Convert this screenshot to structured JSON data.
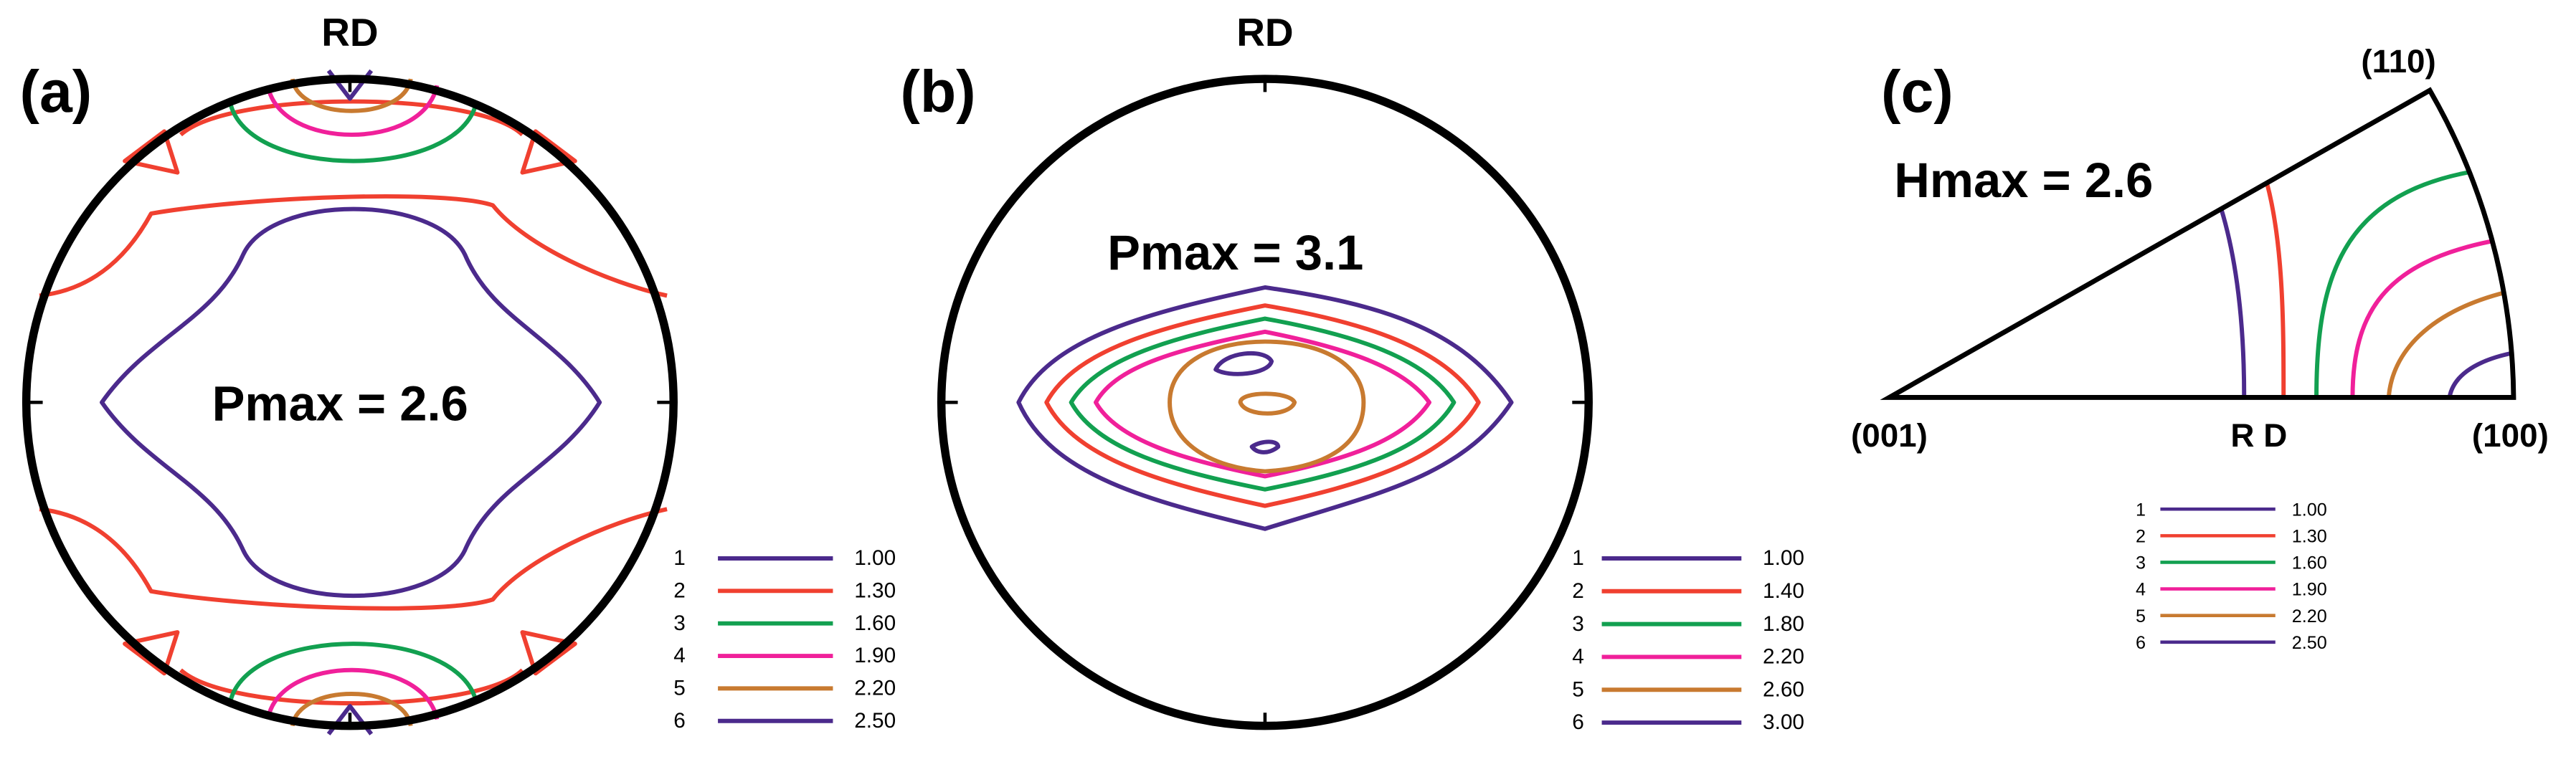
{
  "panels": [
    {
      "label": "(a)",
      "top_label": "RD",
      "annotation": "Pmax = 2.6",
      "legend": [
        {
          "level": "1",
          "value": "1.00",
          "color": "#4b2a8c"
        },
        {
          "level": "2",
          "value": "1.30",
          "color": "#f04030"
        },
        {
          "level": "3",
          "value": "1.60",
          "color": "#12a050"
        },
        {
          "level": "4",
          "value": "1.90",
          "color": "#f0209a"
        },
        {
          "level": "5",
          "value": "2.20",
          "color": "#c87a30"
        },
        {
          "level": "6",
          "value": "2.50",
          "color": "#4b2a8c"
        }
      ]
    },
    {
      "label": "(b)",
      "top_label": "RD",
      "annotation": "Pmax = 3.1",
      "legend": [
        {
          "level": "1",
          "value": "1.00",
          "color": "#4b2a8c"
        },
        {
          "level": "2",
          "value": "1.40",
          "color": "#f04030"
        },
        {
          "level": "3",
          "value": "1.80",
          "color": "#12a050"
        },
        {
          "level": "4",
          "value": "2.20",
          "color": "#f0209a"
        },
        {
          "level": "5",
          "value": "2.60",
          "color": "#c87a30"
        },
        {
          "level": "6",
          "value": "3.00",
          "color": "#4b2a8c"
        }
      ]
    },
    {
      "label": "(c)",
      "corners": [
        "(110)",
        "(001)",
        "(100)"
      ],
      "axis_label": "R D",
      "annotation": "Hmax = 2.6",
      "legend": [
        {
          "level": "1",
          "value": "1.00",
          "color": "#4b2a8c"
        },
        {
          "level": "2",
          "value": "1.30",
          "color": "#f04030"
        },
        {
          "level": "3",
          "value": "1.60",
          "color": "#12a050"
        },
        {
          "level": "4",
          "value": "1.90",
          "color": "#f0209a"
        },
        {
          "level": "5",
          "value": "2.20",
          "color": "#c87a30"
        },
        {
          "level": "6",
          "value": "2.50",
          "color": "#4b2a8c"
        }
      ]
    }
  ]
}
